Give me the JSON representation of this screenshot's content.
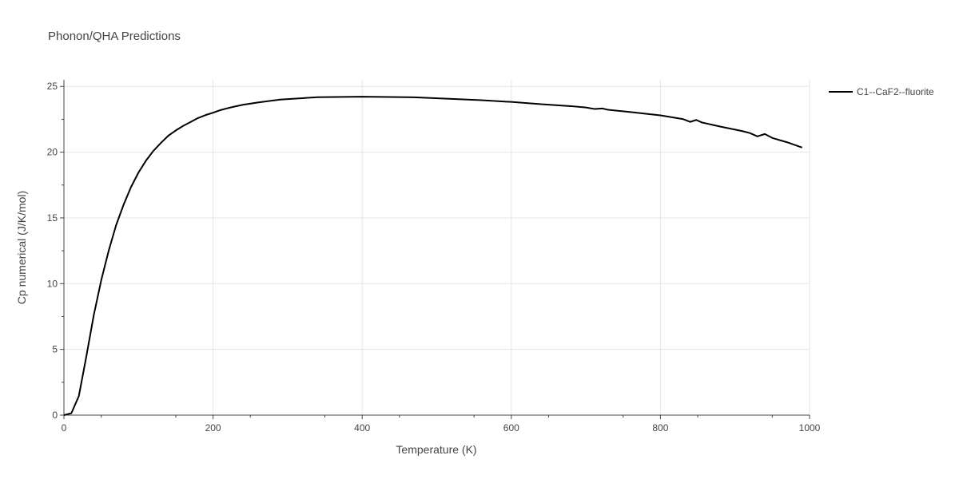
{
  "chart_data": {
    "type": "line",
    "title": "Phonon/QHA Predictions",
    "xlabel": "Temperature (K)",
    "ylabel": "Cp numerical (J/K/mol)",
    "xlim": [
      0,
      1000
    ],
    "ylim": [
      0,
      25.5
    ],
    "xticks": [
      0,
      200,
      400,
      600,
      800,
      1000
    ],
    "yticks": [
      0,
      5,
      10,
      15,
      20,
      25
    ],
    "grid": true,
    "legend_position": "top-right",
    "series": [
      {
        "name": "C1--CaF2--fluorite",
        "color": "#000000",
        "x": [
          0,
          10,
          20,
          30,
          40,
          50,
          60,
          70,
          80,
          90,
          100,
          110,
          120,
          130,
          140,
          150,
          160,
          170,
          180,
          190,
          200,
          210,
          220,
          230,
          240,
          260,
          290,
          340,
          400,
          470,
          520,
          560,
          600,
          640,
          680,
          700,
          712,
          722,
          730,
          760,
          800,
          830,
          840,
          848,
          856,
          880,
          910,
          920,
          930,
          940,
          950,
          970,
          990
        ],
        "y": [
          0,
          0.15,
          1.45,
          4.45,
          7.6,
          10.25,
          12.5,
          14.45,
          16.0,
          17.35,
          18.45,
          19.35,
          20.1,
          20.7,
          21.25,
          21.65,
          22.0,
          22.3,
          22.6,
          22.82,
          23.0,
          23.2,
          23.35,
          23.48,
          23.6,
          23.78,
          24.0,
          24.18,
          24.22,
          24.17,
          24.05,
          23.95,
          23.82,
          23.65,
          23.5,
          23.4,
          23.28,
          23.32,
          23.22,
          23.05,
          22.8,
          22.52,
          22.3,
          22.45,
          22.25,
          21.95,
          21.6,
          21.45,
          21.2,
          21.38,
          21.08,
          20.75,
          20.35
        ]
      }
    ]
  }
}
